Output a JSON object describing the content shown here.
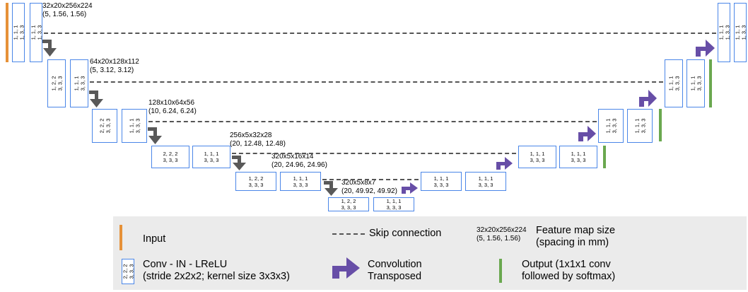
{
  "conv": {
    "e0a": "1, 1, 1\n1, 3, 3",
    "e0b": "1, 1, 1\n1, 3, 3",
    "e1a": "1, 2, 2\n3, 3, 3",
    "e1b": "1, 1, 1\n3, 3, 3",
    "e2a": "2, 2, 2\n3, 3, 3",
    "e2b": "1, 1, 1\n3, 3, 3",
    "e3a": "2, 2, 2\n3, 3, 3",
    "e3b": "1, 1, 1\n3, 3, 3",
    "e4a": "1, 2, 2\n3, 3, 3",
    "e4b": "1, 1, 1\n3, 3, 3",
    "e5a": "1, 2, 2\n3, 3, 3",
    "e5b": "1, 1, 1\n3, 3, 3",
    "d4a": "1, 1, 1\n3, 3, 3",
    "d4b": "1, 1, 1\n3, 3, 3",
    "d3a": "1, 1, 1\n3, 3, 3",
    "d3b": "1, 1, 1\n3, 3, 3",
    "d2a": "1, 1, 1\n3, 3, 3",
    "d2b": "1, 1, 1\n3, 3, 3",
    "d1a": "1, 1, 1\n3, 3, 3",
    "d1b": "1, 1, 1\n3, 3, 3",
    "d0a": "1, 1, 1\n1, 3, 3",
    "d0b": "1, 1, 1\n1, 3, 3"
  },
  "sizes": {
    "l0": "32x20x256x224\n(5, 1.56, 1.56)",
    "l1": "64x20x128x112\n(5, 3.12, 3.12)",
    "l2": "128x10x64x56\n(10, 6.24, 6.24)",
    "l3": "256x5x32x28\n(20, 12.48, 12.48)",
    "l4": "320x5x16x14\n(20, 24.96, 24.96)",
    "l5": "320x5x8x7\n(20, 49.92, 49.92)"
  },
  "legend": {
    "input": "Input",
    "skip": "Skip connection",
    "fm_example": "32x20x256x224\n(5, 1.56, 1.56)",
    "fm_label": "Feature map size\n(spacing in mm)",
    "conv_example": "2, 2, 2\n3, 3, 3",
    "conv_label": "Conv - IN - LReLU\n(stride 2x2x2; kernel size 3x3x3)",
    "transposed": "Convolution\nTransposed",
    "output": "Output (1x1x1 conv\nfollowed by softmax)"
  },
  "colors": {
    "input": "#e69138",
    "box_border": "#4a86e8",
    "downsample_arrow": "#595959",
    "upsample_arrow": "#674ea7",
    "output": "#6aa84f",
    "skip": "#555555",
    "legend_bg": "#ebebeb"
  }
}
